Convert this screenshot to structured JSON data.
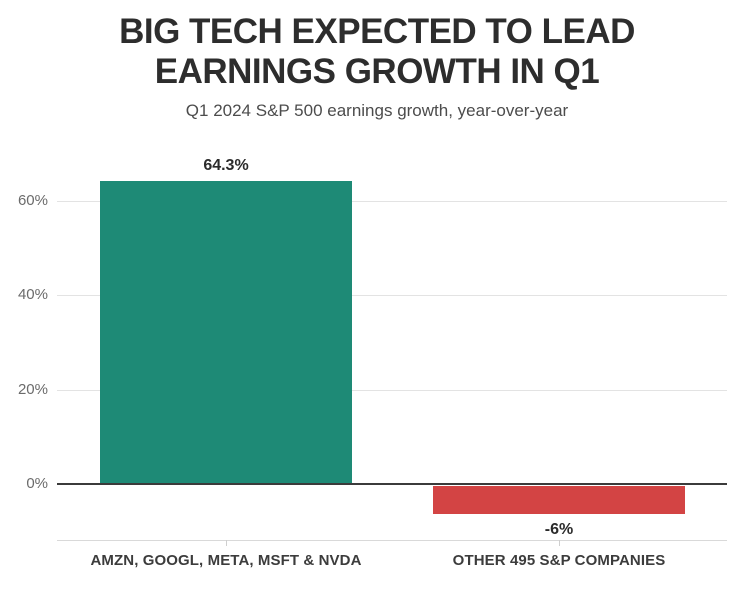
{
  "header": {
    "title_line1": "BIG TECH EXPECTED TO LEAD",
    "title_line2": "EARNINGS GROWTH IN Q1",
    "subtitle": "Q1 2024 S&P 500 earnings growth, year-over-year"
  },
  "colors": {
    "positive_bar": "#1e8a76",
    "negative_bar": "#d34444",
    "gridline": "#e3e3e3",
    "zero_line": "#3b3b3b",
    "axis_line": "#d9d9d9",
    "tick_mark": "#cfcfcf",
    "ytick_label": "#6b6b6b",
    "value_label": "#2b2b2b",
    "category_label": "#3c3c3c",
    "title": "#2d2d2d",
    "subtitle": "#4c4c4c",
    "background": "#ffffff"
  },
  "chart_data": {
    "type": "bar",
    "title": "BIG TECH EXPECTED TO LEAD EARNINGS GROWTH IN Q1",
    "subtitle": "Q1 2024 S&P 500 earnings growth, year-over-year",
    "categories": [
      "AMZN, GOOGL, META, MSFT & NVDA",
      "OTHER 495 S&P COMPANIES"
    ],
    "values": [
      64.3,
      -6
    ],
    "value_labels": [
      "64.3%",
      "-6%"
    ],
    "bar_colors": [
      "#1e8a76",
      "#d34444"
    ],
    "xlabel": "",
    "ylabel": "",
    "yticks": [
      0,
      20,
      40,
      60
    ],
    "ytick_labels": [
      "0%",
      "20%",
      "40%",
      "60%"
    ],
    "ylim": [
      -10,
      66
    ],
    "grid": "horizontal",
    "legend": "none"
  }
}
